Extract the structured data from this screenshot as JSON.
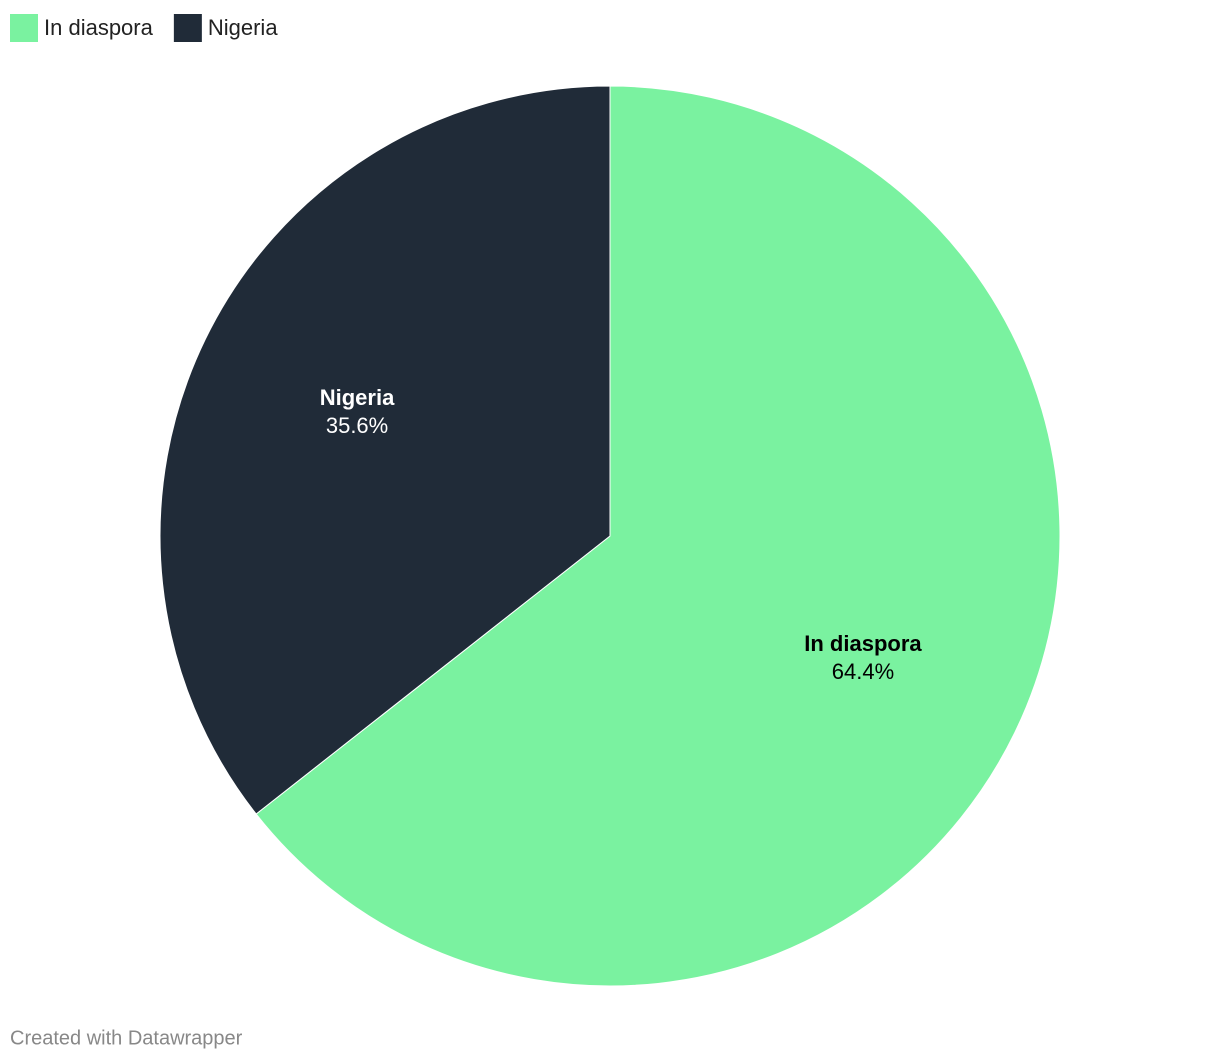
{
  "chart_data": {
    "type": "pie",
    "categories": [
      "In diaspora",
      "Nigeria"
    ],
    "values": [
      64.4,
      35.6
    ],
    "value_labels": [
      "64.4%",
      "35.6%"
    ],
    "colors": [
      "#7af2a0",
      "#202b38"
    ],
    "legend": "top-left",
    "credit": "Created with Datawrapper"
  }
}
